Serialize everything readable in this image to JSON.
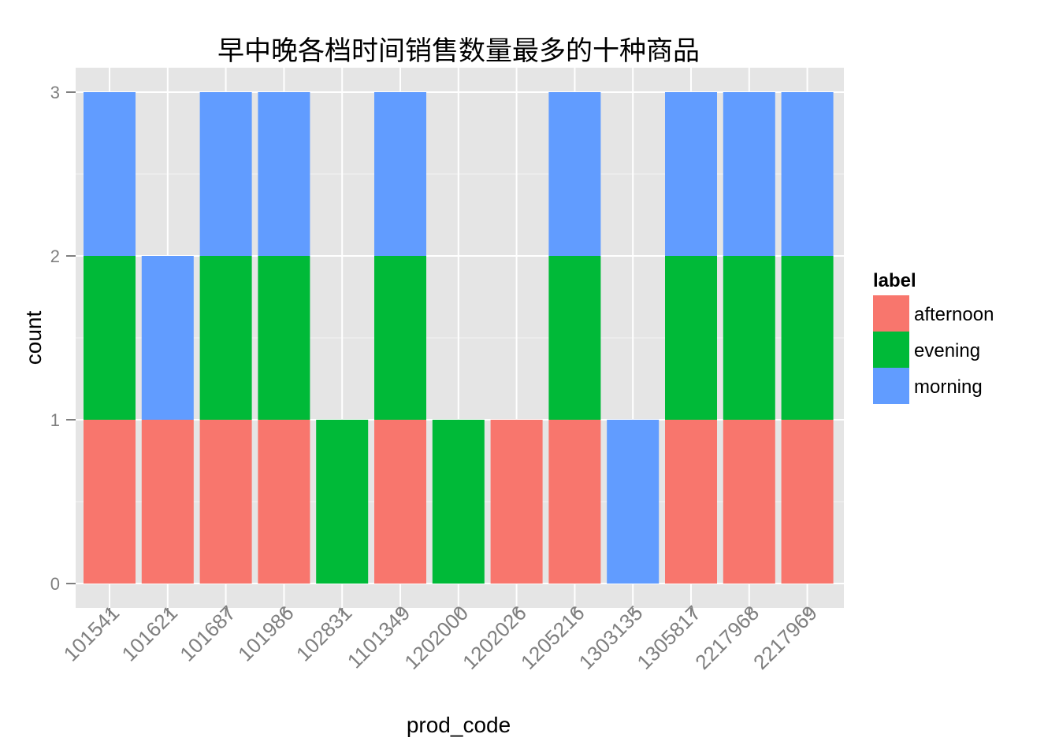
{
  "chart_data": {
    "type": "bar",
    "stacked": true,
    "title": "早中晚各档时间销售数量最多的十种商品",
    "xlabel": "prod_code",
    "ylabel": "count",
    "ylim": [
      0,
      3
    ],
    "yticks": [
      0,
      1,
      2,
      3
    ],
    "grid": true,
    "legend_title": "label",
    "legend_position": "right",
    "categories": [
      "101541",
      "101621",
      "101687",
      "101986",
      "102831",
      "1101349",
      "1202000",
      "1202026",
      "1205216",
      "1303135",
      "1305817",
      "2217968",
      "2217969"
    ],
    "series": [
      {
        "name": "afternoon",
        "color": "#F8766D",
        "values": [
          1,
          1,
          1,
          1,
          0,
          1,
          0,
          1,
          1,
          0,
          1,
          1,
          1
        ]
      },
      {
        "name": "evening",
        "color": "#00BA38",
        "values": [
          1,
          0,
          1,
          1,
          1,
          1,
          1,
          0,
          1,
          0,
          1,
          1,
          1
        ]
      },
      {
        "name": "morning",
        "color": "#619CFF",
        "values": [
          1,
          1,
          1,
          1,
          0,
          1,
          0,
          0,
          1,
          1,
          1,
          1,
          1
        ]
      }
    ],
    "panel_background": "#E5E5E5",
    "grid_color": "#FFFFFF"
  }
}
